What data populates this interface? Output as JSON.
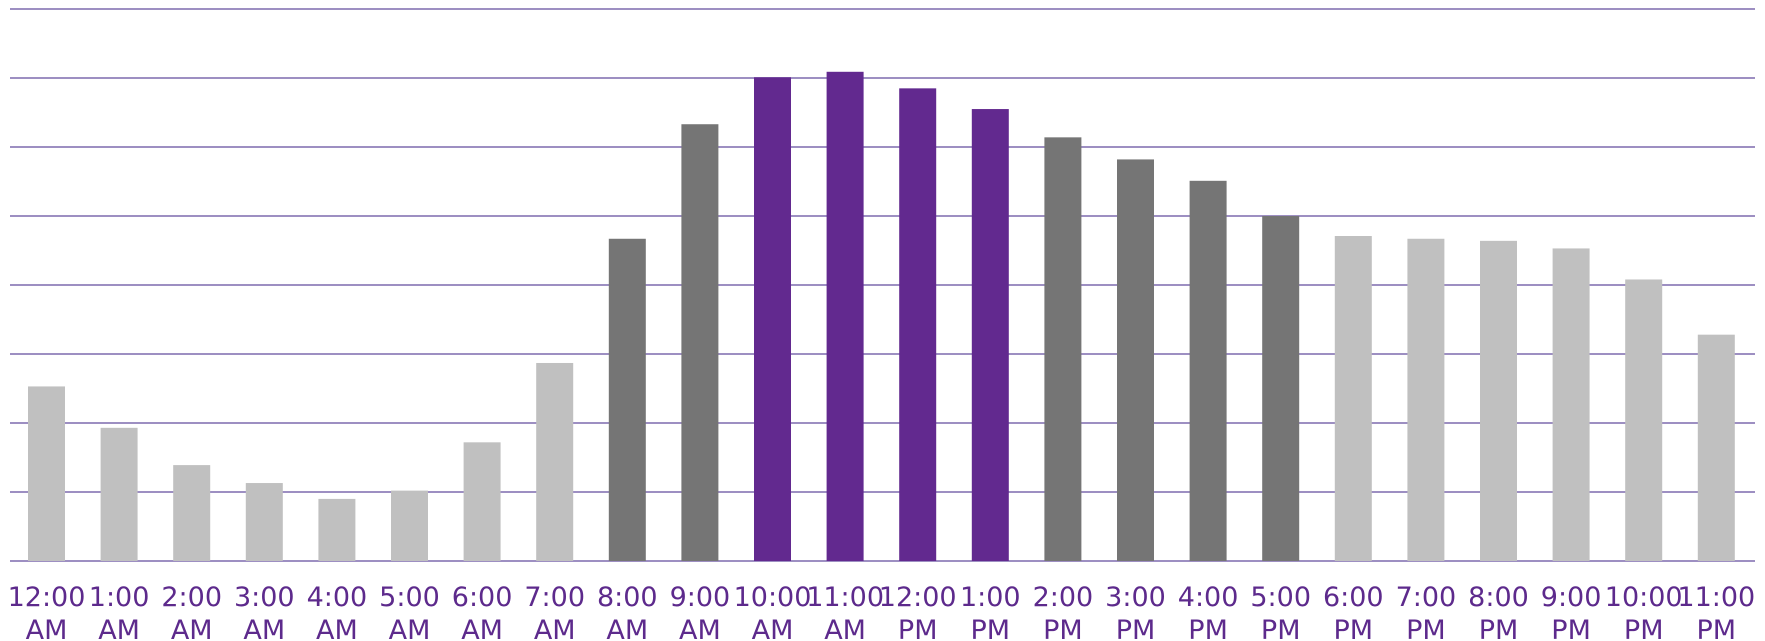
{
  "chart_data": {
    "type": "bar",
    "title": "",
    "xlabel": "",
    "ylabel": "",
    "ylim": [
      0,
      8
    ],
    "grid": true,
    "legend": "none",
    "colors": {
      "gridline": "#9d8fc2",
      "tick_label": "#5d2a8c",
      "bar_light": "#c0c0c0",
      "bar_dark": "#757575",
      "bar_highlight": "#62298f"
    },
    "categories": [
      "12:00 AM",
      "1:00 AM",
      "2:00 AM",
      "3:00 AM",
      "4:00 AM",
      "5:00 AM",
      "6:00 AM",
      "7:00 AM",
      "8:00 AM",
      "9:00 AM",
      "10:00 AM",
      "11:00 AM",
      "12:00 PM",
      "1:00 PM",
      "2:00 PM",
      "3:00 PM",
      "4:00 PM",
      "5:00 PM",
      "6:00 PM",
      "7:00 PM",
      "8:00 PM",
      "9:00 PM",
      "10:00 PM",
      "11:00 PM"
    ],
    "category_lines": [
      [
        "12:00",
        "AM"
      ],
      [
        "1:00",
        "AM"
      ],
      [
        "2:00",
        "AM"
      ],
      [
        "3:00",
        "AM"
      ],
      [
        "4:00",
        "AM"
      ],
      [
        "5:00",
        "AM"
      ],
      [
        "6:00",
        "AM"
      ],
      [
        "7:00",
        "AM"
      ],
      [
        "8:00",
        "AM"
      ],
      [
        "9:00",
        "AM"
      ],
      [
        "10:00",
        "AM"
      ],
      [
        "11:00",
        "AM"
      ],
      [
        "12:00",
        "PM"
      ],
      [
        "1:00",
        "PM"
      ],
      [
        "2:00",
        "PM"
      ],
      [
        "3:00",
        "PM"
      ],
      [
        "4:00",
        "PM"
      ],
      [
        "5:00",
        "PM"
      ],
      [
        "6:00",
        "PM"
      ],
      [
        "7:00",
        "PM"
      ],
      [
        "8:00",
        "PM"
      ],
      [
        "9:00",
        "PM"
      ],
      [
        "10:00",
        "PM"
      ],
      [
        "11:00",
        "PM"
      ]
    ],
    "values": [
      2.53,
      1.93,
      1.39,
      1.13,
      0.9,
      1.02,
      1.72,
      2.87,
      4.67,
      6.33,
      7.01,
      7.09,
      6.85,
      6.55,
      6.14,
      5.82,
      5.51,
      5.0,
      4.71,
      4.67,
      4.64,
      4.53,
      4.08,
      3.28
    ],
    "bar_groups": [
      "light",
      "light",
      "light",
      "light",
      "light",
      "light",
      "light",
      "light",
      "dark",
      "dark",
      "highlight",
      "highlight",
      "highlight",
      "highlight",
      "dark",
      "dark",
      "dark",
      "dark",
      "light",
      "light",
      "light",
      "light",
      "light",
      "light"
    ]
  }
}
